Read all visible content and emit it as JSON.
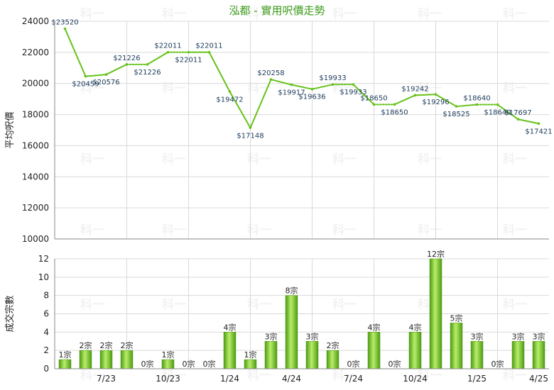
{
  "chart_data": [
    {
      "type": "line",
      "title": "泓都 - 實用呎價走勢",
      "ylabel": "平均呎價",
      "ylim": [
        10000,
        24000
      ],
      "y_ticks": [
        10000,
        12000,
        14000,
        16000,
        18000,
        20000,
        22000,
        24000
      ],
      "x_tick_labels": [
        "7/23",
        "10/23",
        "1/24",
        "4/24",
        "7/24",
        "10/24",
        "1/25",
        "4/25"
      ],
      "grid": true,
      "series": [
        {
          "values": [
            23520,
            20459,
            20576,
            21226,
            21226,
            22011,
            22011,
            22011,
            19472,
            17148,
            20258,
            19917,
            19636,
            19933,
            19933,
            18650,
            18650,
            19242,
            19296,
            18525,
            18640,
            18640,
            17697,
            17421
          ],
          "labels": [
            "$23520",
            "$20459",
            "$20576",
            "$21226",
            "$21226",
            "$22011",
            "$22011",
            "$22011",
            "$19472",
            "$17148",
            "$20258",
            "$19917",
            "$19636",
            "$19933",
            "$19933",
            "$18650",
            "$18650",
            "$19242",
            "$19296",
            "$18525",
            "$18640",
            "$18640",
            "$17697",
            "$17421"
          ],
          "carried": [
            false,
            false,
            false,
            false,
            true,
            false,
            true,
            false,
            false,
            false,
            false,
            false,
            false,
            false,
            true,
            false,
            true,
            false,
            false,
            false,
            false,
            true,
            false,
            false
          ]
        }
      ]
    },
    {
      "type": "bar",
      "ylabel": "成交宗數",
      "ylim": [
        0,
        12
      ],
      "y_ticks": [
        0,
        2,
        4,
        6,
        8,
        10,
        12
      ],
      "x_tick_labels": [
        "7/23",
        "10/23",
        "1/24",
        "4/24",
        "7/24",
        "10/24",
        "1/25",
        "4/25"
      ],
      "grid": true,
      "values": [
        1,
        2,
        2,
        2,
        0,
        1,
        0,
        0,
        4,
        1,
        3,
        8,
        3,
        2,
        0,
        4,
        0,
        4,
        12,
        5,
        3,
        0,
        3,
        3
      ],
      "labels": [
        "1宗",
        "2宗",
        "2宗",
        "2宗",
        "0宗",
        "1宗",
        "0宗",
        "0宗",
        "4宗",
        "1宗",
        "3宗",
        "8宗",
        "3宗",
        "2宗",
        "0宗",
        "4宗",
        "0宗",
        "4宗",
        "12宗",
        "5宗",
        "3宗",
        "0宗",
        "3宗",
        "3宗"
      ]
    }
  ],
  "watermark": "科一",
  "colors": {
    "line": "#66c21a",
    "bar_dark": "#4e9a12",
    "bar_light": "#b8ee6a",
    "title": "#3a9a1a",
    "grid": "#d9d9d9",
    "axis": "#8a8a8a"
  }
}
